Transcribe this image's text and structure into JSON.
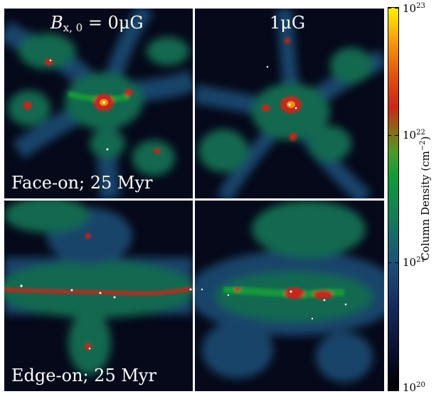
{
  "panels": {
    "top_left": {
      "label_var": "B",
      "label_sub": "x, 0",
      "label_rest": " = 0μG",
      "caption": "Face-on; 25 Myr"
    },
    "top_right": {
      "label": "1μG"
    },
    "bottom_left": {
      "caption": "Edge-on; 25 Myr"
    }
  },
  "colorbar": {
    "title": "Column Density (cm",
    "title_exp": "−2",
    "title_close": ")",
    "ticks": [
      {
        "base": "10",
        "exp": "23"
      },
      {
        "base": "10",
        "exp": "22"
      },
      {
        "base": "10",
        "exp": "21"
      },
      {
        "base": "10",
        "exp": "20"
      }
    ],
    "colors": [
      "#000000",
      "#152a5c",
      "#167a5a",
      "#139a3a",
      "#c8281a",
      "#f09010",
      "#fff200"
    ]
  }
}
